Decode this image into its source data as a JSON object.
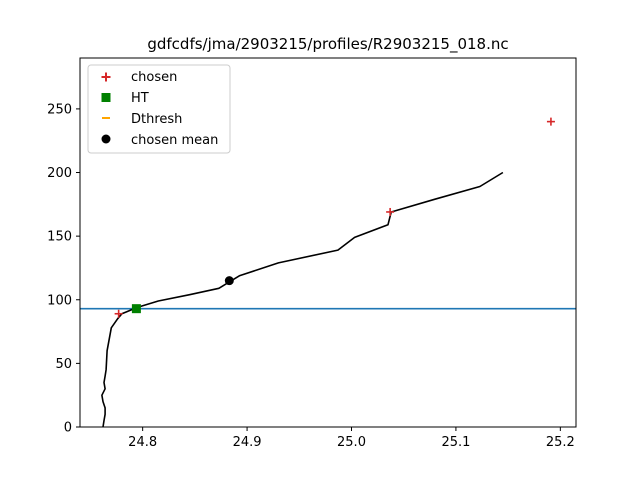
{
  "chart_data": {
    "type": "line",
    "title": "gdfcdfs/jma/2903215/profiles/R2903215_018.nc",
    "xlabel": "",
    "ylabel": "",
    "xlim": [
      24.74,
      25.215
    ],
    "ylim": [
      0,
      290
    ],
    "x_ticks": [
      24.8,
      24.9,
      25.0,
      25.1,
      25.2
    ],
    "x_tick_labels": [
      "24.8",
      "24.9",
      "25.0",
      "25.1",
      "25.2"
    ],
    "y_ticks": [
      0,
      50,
      100,
      150,
      200,
      250
    ],
    "y_tick_labels": [
      "0",
      "50",
      "100",
      "150",
      "200",
      "250"
    ],
    "grid": false,
    "legend_placement": "upper-left",
    "colors": {
      "profile": "#000000",
      "chosen": "#d62728",
      "ht": "#008000",
      "dthresh": "#ffa500",
      "chosen_mean": "#000000",
      "hline": "#1f77b4"
    },
    "profile": {
      "x": [
        24.762,
        24.763,
        24.764,
        24.764,
        24.762,
        24.761,
        24.764,
        24.763,
        24.764,
        24.765,
        24.766,
        24.77,
        24.776,
        24.78,
        24.795,
        24.815,
        24.845,
        24.873,
        24.883,
        24.893,
        24.93,
        24.987,
        25.003,
        25.035,
        25.038,
        25.08,
        25.123,
        25.145
      ],
      "y": [
        0,
        5,
        10,
        15,
        20,
        25,
        30,
        35,
        40,
        45,
        60,
        78,
        85,
        89,
        94,
        99,
        104,
        109,
        114,
        119,
        129,
        139,
        149,
        159,
        169,
        179,
        189,
        200
      ]
    },
    "series": [
      {
        "name": "chosen",
        "marker": "plus",
        "x": [
          24.777,
          25.037,
          25.191
        ],
        "y": [
          89,
          169,
          240
        ]
      },
      {
        "name": "HT",
        "marker": "square",
        "x": [
          24.794
        ],
        "y": [
          93
        ]
      },
      {
        "name": "Dthresh",
        "marker": "hline",
        "x": [],
        "y": []
      },
      {
        "name": "chosen mean",
        "marker": "circle",
        "x": [
          24.883
        ],
        "y": [
          115
        ]
      }
    ],
    "hline_y": 93
  }
}
